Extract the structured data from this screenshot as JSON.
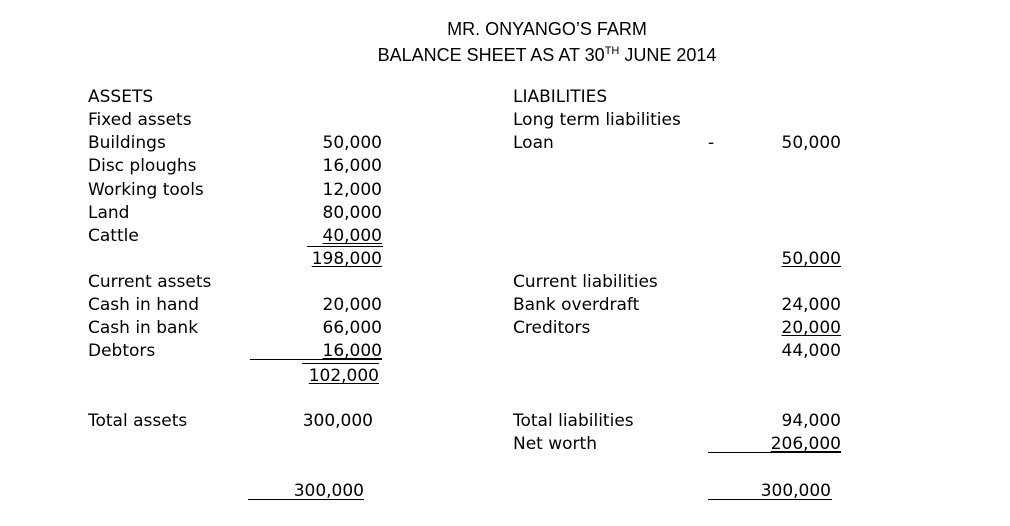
{
  "header": {
    "farm_name": "MR. ONYANGO’S FARM",
    "title_prefix": "BALANCE SHEET AS AT 30",
    "title_superscript": "TH",
    "title_suffix": " JUNE 2014"
  },
  "assets": {
    "heading": "ASSETS",
    "fixed_heading": "Fixed assets",
    "fixed_items": [
      {
        "label": "Buildings",
        "value": "50,000"
      },
      {
        "label": "Disc ploughs",
        "value": "16,000"
      },
      {
        "label": "Working tools",
        "value": "12,000"
      },
      {
        "label": "Land",
        "value": "80,000"
      },
      {
        "label": "Cattle",
        "value": "40,000"
      }
    ],
    "fixed_total": "198,000",
    "current_heading": "Current assets",
    "current_items": [
      {
        "label": "Cash in hand",
        "value": "20,000"
      },
      {
        "label": "Cash in bank",
        "value": "66,000"
      },
      {
        "label": "Debtors",
        "value": "16,000"
      }
    ],
    "current_total": "102,000",
    "total_label": "Total assets",
    "total_value": "300,000",
    "grand_total": "300,000"
  },
  "liabilities": {
    "heading": "LIABILITIES",
    "long_term_heading": "Long term liabilities",
    "long_term_items": [
      {
        "label": "Loan",
        "dash": "-",
        "value": "50,000"
      }
    ],
    "long_term_total": "50,000",
    "current_heading": "Current liabilities",
    "current_items": [
      {
        "label": "Bank overdraft",
        "value": "24,000"
      },
      {
        "label": "Creditors",
        "value": "20,000"
      }
    ],
    "current_total": "44,000",
    "total_label": "Total liabilities",
    "total_value": "94,000",
    "net_worth_label": "Net worth",
    "net_worth_value": "206,000",
    "grand_total": "300,000"
  }
}
